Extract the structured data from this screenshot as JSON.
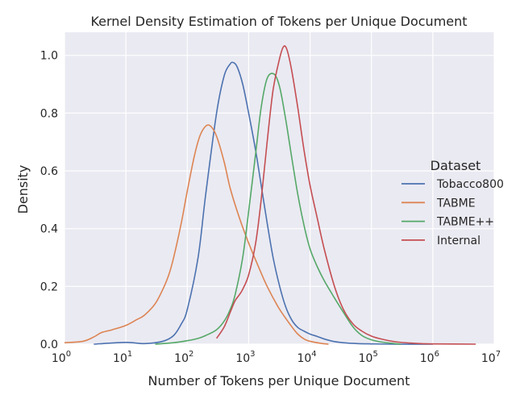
{
  "chart_data": {
    "type": "line",
    "title": "Kernel Density Estimation of Tokens per Unique Document",
    "xlabel": "Number of Tokens per Unique Document",
    "ylabel": "Density",
    "x_scale": "log10",
    "xlim": [
      1,
      10000000
    ],
    "ylim": [
      0,
      1.08
    ],
    "x_ticks": [
      {
        "value": 1,
        "base": "10",
        "exp": "0"
      },
      {
        "value": 10,
        "base": "10",
        "exp": "1"
      },
      {
        "value": 100,
        "base": "10",
        "exp": "2"
      },
      {
        "value": 1000,
        "base": "10",
        "exp": "3"
      },
      {
        "value": 10000,
        "base": "10",
        "exp": "4"
      },
      {
        "value": 100000,
        "base": "10",
        "exp": "5"
      },
      {
        "value": 1000000,
        "base": "10",
        "exp": "6"
      },
      {
        "value": 10000000,
        "base": "10",
        "exp": "7"
      }
    ],
    "y_ticks": [
      "0.0",
      "0.2",
      "0.4",
      "0.6",
      "0.8",
      "1.0"
    ],
    "grid": true,
    "background": "#eaeaf2",
    "legend": {
      "title": "Dataset",
      "placement": "center-right"
    },
    "series": [
      {
        "name": "Tobacco800",
        "color": "#4c72b0",
        "x": [
          3,
          10,
          20,
          40,
          60,
          80,
          100,
          150,
          200,
          300,
          400,
          500,
          560,
          650,
          800,
          1000,
          1300,
          1600,
          2000,
          2500,
          3200,
          4000,
          5000,
          6300,
          8000,
          10000,
          13000,
          17000,
          25000,
          40000,
          60000,
          100000,
          200000,
          1000000
        ],
        "values": [
          0.0,
          0.006,
          0.002,
          0.01,
          0.03,
          0.07,
          0.12,
          0.3,
          0.52,
          0.8,
          0.93,
          0.97,
          0.975,
          0.96,
          0.9,
          0.8,
          0.67,
          0.55,
          0.42,
          0.3,
          0.2,
          0.13,
          0.085,
          0.058,
          0.045,
          0.035,
          0.027,
          0.018,
          0.009,
          0.004,
          0.002,
          0.001,
          0.0,
          0.0
        ]
      },
      {
        "name": "TABME",
        "color": "#dd8452",
        "x": [
          1,
          2,
          3,
          4,
          6,
          10,
          15,
          20,
          30,
          40,
          50,
          60,
          80,
          100,
          130,
          160,
          200,
          240,
          300,
          400,
          500,
          700,
          1000,
          1500,
          2000,
          3000,
          4000,
          6000,
          8000,
          10000,
          15000,
          20000
        ],
        "values": [
          0.005,
          0.01,
          0.025,
          0.04,
          0.05,
          0.065,
          0.085,
          0.1,
          0.14,
          0.19,
          0.24,
          0.3,
          0.42,
          0.53,
          0.65,
          0.72,
          0.755,
          0.755,
          0.72,
          0.63,
          0.54,
          0.44,
          0.35,
          0.26,
          0.2,
          0.13,
          0.09,
          0.04,
          0.018,
          0.01,
          0.003,
          0.0
        ]
      },
      {
        "name": "TABME++",
        "color": "#55a868",
        "x": [
          30,
          60,
          100,
          150,
          200,
          300,
          400,
          500,
          600,
          800,
          1000,
          1300,
          1600,
          2000,
          2600,
          3200,
          4000,
          5000,
          6300,
          8000,
          10000,
          13000,
          17000,
          25000,
          35000,
          50000,
          70000,
          100000,
          150000,
          300000
        ],
        "values": [
          0.0,
          0.005,
          0.012,
          0.02,
          0.03,
          0.05,
          0.08,
          0.12,
          0.17,
          0.3,
          0.46,
          0.66,
          0.82,
          0.92,
          0.935,
          0.89,
          0.78,
          0.65,
          0.52,
          0.41,
          0.33,
          0.27,
          0.22,
          0.16,
          0.11,
          0.06,
          0.03,
          0.015,
          0.007,
          0.0
        ]
      },
      {
        "name": "Internal",
        "color": "#c44e52",
        "x": [
          300,
          400,
          500,
          600,
          700,
          800,
          1000,
          1300,
          1600,
          2000,
          2500,
          3200,
          3700,
          4200,
          5000,
          6300,
          8000,
          10000,
          13000,
          17000,
          25000,
          35000,
          50000,
          70000,
          100000,
          150000,
          250000,
          500000,
          1000000,
          5000000
        ],
        "values": [
          0.02,
          0.06,
          0.11,
          0.15,
          0.17,
          0.19,
          0.24,
          0.35,
          0.5,
          0.7,
          0.88,
          0.99,
          1.03,
          1.02,
          0.95,
          0.82,
          0.67,
          0.55,
          0.44,
          0.33,
          0.2,
          0.12,
          0.07,
          0.045,
          0.028,
          0.017,
          0.008,
          0.003,
          0.001,
          0.0
        ]
      }
    ]
  }
}
